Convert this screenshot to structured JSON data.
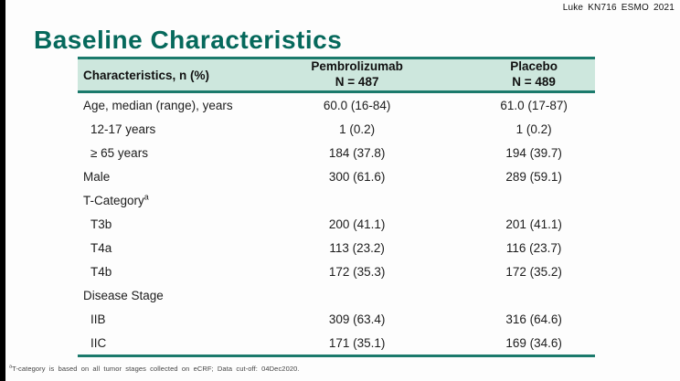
{
  "page": {
    "top_right_label": "Luke KN716 ESMO 2021",
    "title": "Baseline Characteristics",
    "footnote_sup": "a",
    "footnote_text": "T-category is based on all tumor stages collected on eCRF; Data cut-off: 04Dec2020."
  },
  "colors": {
    "title_teal": "#06695c",
    "rule_teal": "#1b7a6c",
    "header_mint_bg": "#cde7dd",
    "left_bar_black": "#000000"
  },
  "table": {
    "header": {
      "col1": "Characteristics, n (%)",
      "col2_line1": "Pembrolizumab",
      "col2_line2": "N = 487",
      "col3_line1": "Placebo",
      "col3_line2": "N = 489"
    },
    "rows": [
      {
        "label": "Age, median (range), years",
        "sup": "",
        "indent": false,
        "pembro": "60.0 (16-84)",
        "placebo": "61.0 (17-87)"
      },
      {
        "label": "12-17 years",
        "sup": "",
        "indent": true,
        "pembro": "1 (0.2)",
        "placebo": "1 (0.2)"
      },
      {
        "label": "≥ 65 years",
        "sup": "",
        "indent": true,
        "pembro": "184 (37.8)",
        "placebo": "194 (39.7)"
      },
      {
        "label": "Male",
        "sup": "",
        "indent": false,
        "pembro": "300 (61.6)",
        "placebo": "289 (59.1)"
      },
      {
        "label": "T-Category",
        "sup": "a",
        "indent": false,
        "pembro": "",
        "placebo": ""
      },
      {
        "label": "T3b",
        "sup": "",
        "indent": true,
        "pembro": "200 (41.1)",
        "placebo": "201 (41.1)"
      },
      {
        "label": "T4a",
        "sup": "",
        "indent": true,
        "pembro": "113 (23.2)",
        "placebo": "116 (23.7)"
      },
      {
        "label": "T4b",
        "sup": "",
        "indent": true,
        "pembro": "172 (35.3)",
        "placebo": "172 (35.2)"
      },
      {
        "label": "Disease Stage",
        "sup": "",
        "indent": false,
        "pembro": "",
        "placebo": ""
      },
      {
        "label": "IIB",
        "sup": "",
        "indent": true,
        "pembro": "309 (63.4)",
        "placebo": "316 (64.6)"
      },
      {
        "label": "IIC",
        "sup": "",
        "indent": true,
        "pembro": "171 (35.1)",
        "placebo": "169 (34.6)"
      }
    ]
  }
}
